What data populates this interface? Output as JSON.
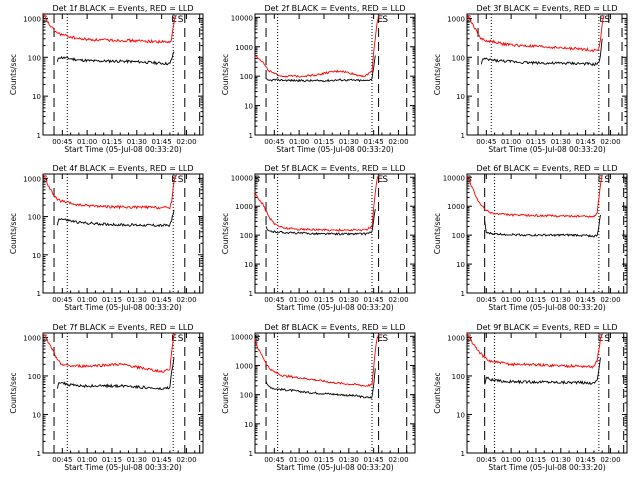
{
  "colors": {
    "events": "#000000",
    "lld": "#ff0000",
    "axis": "#000000"
  },
  "shared": {
    "ylabel": "Counts/sec",
    "xlabel": "Start Time (05-Jul-08 00:33:20)",
    "yticks": [
      "1",
      "10",
      "100",
      "1000"
    ],
    "ytick_values": [
      1,
      10,
      100,
      1000
    ],
    "y_scale": "log"
  },
  "chart_data": [
    {
      "type": "line",
      "title": "Det 1f BLACK = Events, RED = LLD",
      "ylim": [
        1,
        1300
      ],
      "topLabel": "1000",
      "xticks": [
        "00:45",
        "01:00",
        "01:15",
        "01:30",
        "01:45",
        "02:00"
      ],
      "xtick_minutes": [
        45,
        60,
        75,
        90,
        105,
        120
      ],
      "xlim": [
        33.33,
        130
      ],
      "dash_lines": [
        40,
        119,
        128
      ],
      "dot_lines": [
        48,
        112
      ],
      "s_markers": [
        {
          "x": 34.5,
          "label": "S"
        },
        {
          "x": 112.5,
          "label": "E"
        },
        {
          "x": 116.5,
          "label": "S"
        }
      ],
      "series": [
        {
          "name": "events",
          "color": "#000000",
          "x": [
            42,
            43,
            48,
            55,
            65,
            75,
            85,
            95,
            105,
            110,
            111,
            112.5
          ],
          "y": [
            75,
            100,
            95,
            85,
            80,
            80,
            78,
            75,
            70,
            68,
            90,
            140
          ]
        },
        {
          "name": "lld",
          "color": "#ff0000",
          "x": [
            33.33,
            37,
            40,
            42,
            45,
            48,
            55,
            65,
            75,
            85,
            95,
            105,
            110,
            111,
            112,
            113,
            114
          ],
          "y": [
            1300,
            700,
            500,
            420,
            380,
            350,
            300,
            280,
            275,
            270,
            260,
            250,
            240,
            300,
            600,
            1000,
            1200
          ]
        }
      ]
    },
    {
      "type": "line",
      "title": "Det 2f BLACK = Events, RED = LLD",
      "ylim": [
        1,
        13000
      ],
      "topLabel": "10000",
      "xticks": [
        "00:45",
        "01:00",
        "01:15",
        "01:30",
        "01:45",
        "02:00"
      ],
      "xtick_minutes": [
        45,
        60,
        75,
        90,
        105,
        120
      ],
      "xlim": [
        33.33,
        130
      ],
      "dash_lines": [
        40,
        108,
        125
      ],
      "dot_lines": [
        47,
        104
      ],
      "s_markers": [
        {
          "x": 109,
          "label": "E"
        },
        {
          "x": 112,
          "label": "S"
        }
      ],
      "series": [
        {
          "name": "events",
          "color": "#000000",
          "x": [
            40,
            41,
            45,
            55,
            65,
            75,
            85,
            95,
            100,
            104,
            105,
            106
          ],
          "y": [
            80,
            70,
            75,
            72,
            70,
            70,
            75,
            72,
            70,
            80,
            200,
            500
          ]
        },
        {
          "name": "lld",
          "color": "#ff0000",
          "x": [
            33.33,
            36,
            38,
            40,
            42,
            45,
            50,
            60,
            70,
            80,
            85,
            90,
            95,
            100,
            104,
            105,
            106,
            107,
            108
          ],
          "y": [
            500,
            400,
            300,
            200,
            150,
            120,
            100,
            100,
            110,
            140,
            150,
            130,
            110,
            100,
            150,
            600,
            2000,
            6000,
            12000
          ]
        }
      ]
    },
    {
      "type": "line",
      "title": "Det 3f BLACK = Events, RED = LLD",
      "ylim": [
        1,
        1300
      ],
      "topLabel": "1000",
      "xticks": [
        "00:45",
        "01:00",
        "01:15",
        "01:30",
        "01:45",
        "02:00"
      ],
      "xtick_minutes": [
        45,
        60,
        75,
        90,
        105,
        120
      ],
      "xlim": [
        33.33,
        130
      ],
      "dash_lines": [
        40,
        119,
        127
      ],
      "dot_lines": [
        48,
        113
      ],
      "s_markers": [
        {
          "x": 34.5,
          "label": "S"
        },
        {
          "x": 115,
          "label": "E"
        },
        {
          "x": 118,
          "label": "S"
        }
      ],
      "series": [
        {
          "name": "events",
          "color": "#000000",
          "x": [
            42,
            43,
            48,
            55,
            65,
            75,
            85,
            95,
            105,
            110,
            113,
            114,
            115
          ],
          "y": [
            70,
            90,
            85,
            80,
            75,
            72,
            70,
            70,
            68,
            65,
            70,
            120,
            300
          ]
        },
        {
          "name": "lld",
          "color": "#ff0000",
          "x": [
            33.33,
            36,
            40,
            42,
            45,
            50,
            55,
            65,
            75,
            85,
            95,
            105,
            110,
            113,
            114,
            115,
            116
          ],
          "y": [
            1300,
            800,
            400,
            300,
            260,
            250,
            220,
            200,
            190,
            180,
            170,
            160,
            150,
            160,
            300,
            700,
            1200
          ]
        }
      ]
    },
    {
      "type": "line",
      "title": "Det 4f BLACK = Events, RED = LLD",
      "ylim": [
        1,
        1300
      ],
      "topLabel": "1000",
      "xticks": [
        "00:45",
        "01:00",
        "01:15",
        "01:30",
        "01:45",
        "02:00"
      ],
      "xtick_minutes": [
        45,
        60,
        75,
        90,
        105,
        120
      ],
      "xlim": [
        33.33,
        130
      ],
      "dash_lines": [
        40,
        119,
        128
      ],
      "dot_lines": [
        48,
        112
      ],
      "s_markers": [
        {
          "x": 34.5,
          "label": "S"
        },
        {
          "x": 112.5,
          "label": "E"
        },
        {
          "x": 116.5,
          "label": "S"
        }
      ],
      "series": [
        {
          "name": "events",
          "color": "#000000",
          "x": [
            42,
            43,
            48,
            55,
            65,
            75,
            85,
            95,
            105,
            110,
            111,
            112.5
          ],
          "y": [
            60,
            90,
            80,
            70,
            65,
            62,
            60,
            60,
            58,
            60,
            80,
            150
          ]
        },
        {
          "name": "lld",
          "color": "#ff0000",
          "x": [
            33.33,
            37,
            40,
            42,
            45,
            48,
            55,
            65,
            75,
            85,
            95,
            105,
            110,
            111,
            112,
            113,
            114
          ],
          "y": [
            1300,
            600,
            350,
            280,
            250,
            230,
            200,
            190,
            180,
            175,
            175,
            170,
            170,
            250,
            600,
            1000,
            1250
          ]
        }
      ]
    },
    {
      "type": "line",
      "title": "Det 5f BLACK = Events, RED = LLD",
      "ylim": [
        1,
        13000
      ],
      "topLabel": "10000",
      "xticks": [
        "00:45",
        "01:00",
        "01:15",
        "01:30",
        "01:45",
        "02:00"
      ],
      "xtick_minutes": [
        45,
        60,
        75,
        90,
        105,
        120
      ],
      "xlim": [
        33.33,
        130
      ],
      "dash_lines": [
        40,
        108,
        125
      ],
      "dot_lines": [
        47,
        104
      ],
      "s_markers": [
        {
          "x": 34.5,
          "label": "S"
        },
        {
          "x": 109,
          "label": "E"
        },
        {
          "x": 112,
          "label": "S"
        }
      ],
      "series": [
        {
          "name": "events",
          "color": "#000000",
          "x": [
            40,
            41,
            45,
            55,
            65,
            75,
            85,
            95,
            100,
            104,
            105,
            106
          ],
          "y": [
            200,
            140,
            130,
            120,
            115,
            110,
            110,
            110,
            110,
            130,
            300,
            800
          ]
        },
        {
          "name": "lld",
          "color": "#ff0000",
          "x": [
            33.33,
            35,
            38,
            40,
            42,
            45,
            50,
            60,
            70,
            80,
            90,
            95,
            100,
            104,
            105,
            106,
            107,
            108
          ],
          "y": [
            3000,
            2000,
            1200,
            700,
            400,
            250,
            180,
            160,
            155,
            150,
            150,
            150,
            150,
            200,
            800,
            3000,
            8000,
            12000
          ]
        }
      ]
    },
    {
      "type": "line",
      "title": "Det 6f BLACK = Events, RED = LLD",
      "ylim": [
        1,
        13000
      ],
      "topLabel": "10000",
      "xticks": [
        "00:45",
        "01:00",
        "01:15",
        "01:30",
        "01:45",
        "02:00"
      ],
      "xtick_minutes": [
        45,
        60,
        75,
        90,
        105,
        120
      ],
      "xlim": [
        33.33,
        130
      ],
      "dash_lines": [
        44,
        119,
        128
      ],
      "dot_lines": [
        50,
        113
      ],
      "s_markers": [
        {
          "x": 34.5,
          "label": "S"
        },
        {
          "x": 114,
          "label": "E"
        },
        {
          "x": 118,
          "label": "S"
        }
      ],
      "series": [
        {
          "name": "events",
          "color": "#000000",
          "x": [
            44,
            45,
            50,
            60,
            70,
            80,
            90,
            100,
            108,
            110,
            112,
            113,
            114
          ],
          "y": [
            300,
            120,
            110,
            105,
            100,
            100,
            100,
            100,
            95,
            90,
            100,
            200,
            500
          ]
        },
        {
          "name": "lld",
          "color": "#ff0000",
          "x": [
            33.33,
            36,
            40,
            44,
            46,
            50,
            60,
            70,
            80,
            90,
            100,
            108,
            110,
            112,
            113,
            114,
            115
          ],
          "y": [
            12000,
            5000,
            1500,
            800,
            650,
            550,
            500,
            480,
            470,
            460,
            450,
            450,
            420,
            600,
            2000,
            6000,
            12000
          ]
        }
      ]
    },
    {
      "type": "line",
      "title": "Det 7f BLACK = Events, RED = LLD",
      "ylim": [
        1,
        1300
      ],
      "topLabel": "1000",
      "xticks": [
        "00:45",
        "01:00",
        "01:15",
        "01:30",
        "01:45",
        "02:00"
      ],
      "xtick_minutes": [
        45,
        60,
        75,
        90,
        105,
        120
      ],
      "xlim": [
        33.33,
        130
      ],
      "dash_lines": [
        40,
        119,
        128
      ],
      "dot_lines": [
        48,
        112
      ],
      "s_markers": [
        {
          "x": 34.5,
          "label": "S"
        },
        {
          "x": 112.5,
          "label": "E"
        },
        {
          "x": 116.5,
          "label": "S"
        }
      ],
      "series": [
        {
          "name": "events",
          "color": "#000000",
          "x": [
            42,
            43,
            48,
            55,
            65,
            75,
            85,
            95,
            105,
            110,
            111,
            112.5
          ],
          "y": [
            50,
            70,
            60,
            55,
            55,
            55,
            55,
            50,
            45,
            50,
            120,
            300
          ]
        },
        {
          "name": "lld",
          "color": "#ff0000",
          "x": [
            33.33,
            36,
            40,
            42,
            45,
            50,
            60,
            70,
            80,
            90,
            100,
            105,
            110,
            111,
            112,
            113
          ],
          "y": [
            1300,
            800,
            400,
            250,
            200,
            180,
            180,
            190,
            200,
            170,
            140,
            130,
            150,
            400,
            900,
            1250
          ]
        }
      ]
    },
    {
      "type": "line",
      "title": "Det 8f BLACK = Events, RED = LLD",
      "ylim": [
        1,
        13000
      ],
      "topLabel": "10000",
      "xticks": [
        "00:45",
        "01:00",
        "01:15",
        "01:30",
        "01:45",
        "02:00"
      ],
      "xtick_minutes": [
        45,
        60,
        75,
        90,
        105,
        120
      ],
      "xlim": [
        33.33,
        130
      ],
      "dash_lines": [
        40,
        108,
        125
      ],
      "dot_lines": [
        47,
        104
      ],
      "s_markers": [
        {
          "x": 34.5,
          "label": "S"
        },
        {
          "x": 109,
          "label": "E"
        },
        {
          "x": 112,
          "label": "S"
        }
      ],
      "series": [
        {
          "name": "events",
          "color": "#000000",
          "x": [
            40,
            41,
            45,
            55,
            65,
            75,
            85,
            95,
            100,
            104,
            105,
            106
          ],
          "y": [
            300,
            200,
            160,
            140,
            120,
            110,
            100,
            90,
            80,
            80,
            200,
            800
          ]
        },
        {
          "name": "lld",
          "color": "#ff0000",
          "x": [
            33.33,
            35,
            38,
            40,
            42,
            45,
            50,
            60,
            70,
            80,
            90,
            95,
            100,
            104,
            105,
            106,
            107,
            108
          ],
          "y": [
            8000,
            4000,
            2000,
            1200,
            800,
            600,
            450,
            380,
            320,
            260,
            230,
            220,
            200,
            220,
            800,
            3000,
            8000,
            12000
          ]
        }
      ]
    },
    {
      "type": "line",
      "title": "Det 9f BLACK = Events, RED = LLD",
      "ylim": [
        1,
        1300
      ],
      "topLabel": "1000",
      "xticks": [
        "00:45",
        "01:00",
        "01:15",
        "01:30",
        "01:45",
        "02:00"
      ],
      "xtick_minutes": [
        45,
        60,
        75,
        90,
        105,
        120
      ],
      "xlim": [
        33.33,
        130
      ],
      "dash_lines": [
        44,
        119,
        128
      ],
      "dot_lines": [
        50,
        113
      ],
      "s_markers": [
        {
          "x": 34.5,
          "label": "S"
        },
        {
          "x": 114,
          "label": "E"
        },
        {
          "x": 118,
          "label": "S"
        }
      ],
      "series": [
        {
          "name": "events",
          "color": "#000000",
          "x": [
            44,
            45,
            50,
            60,
            70,
            80,
            90,
            100,
            108,
            110,
            112,
            113,
            114
          ],
          "y": [
            60,
            90,
            75,
            70,
            70,
            70,
            68,
            68,
            65,
            65,
            80,
            150,
            300
          ]
        },
        {
          "name": "lld",
          "color": "#ff0000",
          "x": [
            33.33,
            36,
            40,
            44,
            46,
            50,
            60,
            70,
            80,
            90,
            100,
            108,
            110,
            112,
            113,
            114,
            115
          ],
          "y": [
            1300,
            800,
            450,
            300,
            250,
            230,
            200,
            200,
            190,
            185,
            180,
            175,
            170,
            250,
            500,
            900,
            1250
          ]
        }
      ]
    }
  ]
}
